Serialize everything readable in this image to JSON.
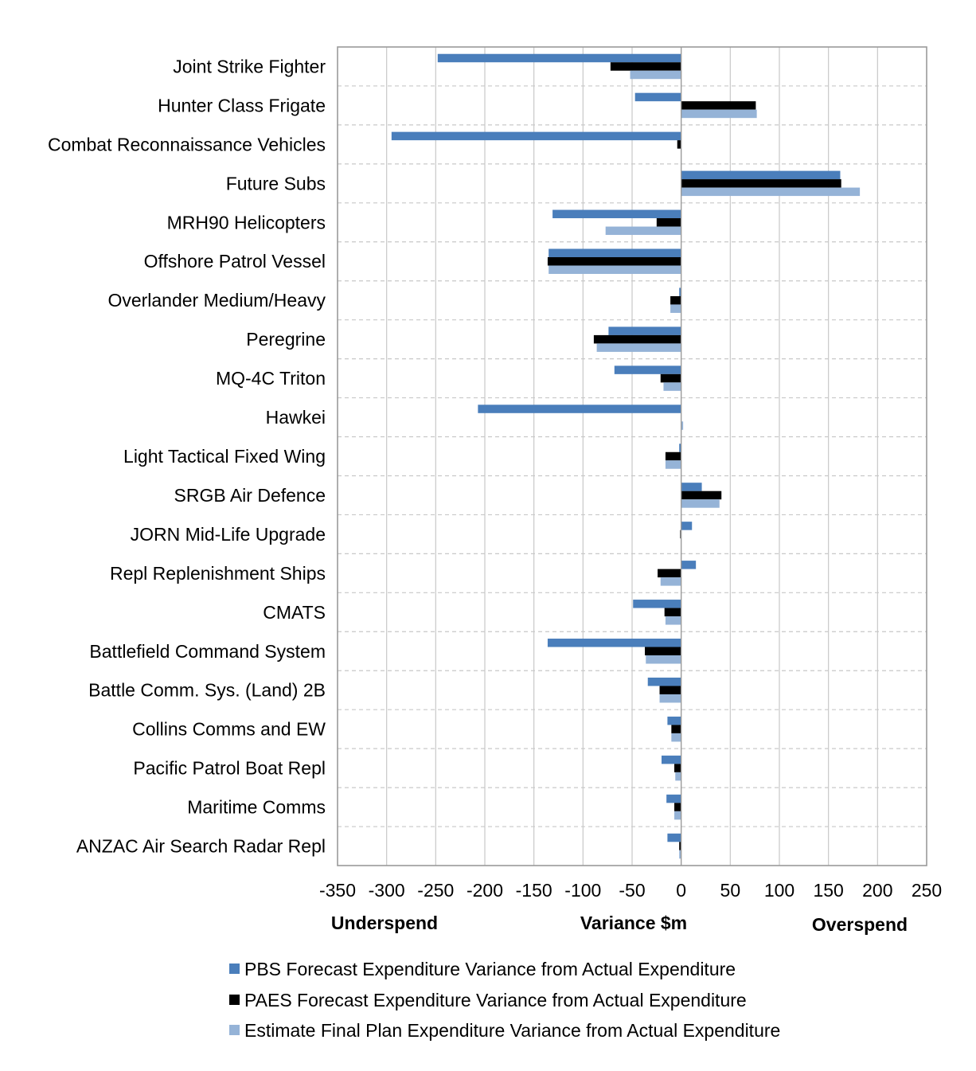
{
  "chart_data": {
    "type": "bar",
    "orientation": "horizontal",
    "categories": [
      "Joint Strike Fighter",
      "Hunter Class Frigate",
      "Combat Reconnaissance Vehicles",
      "Future Subs",
      "MRH90 Helicopters",
      "Offshore Patrol Vessel",
      "Overlander Medium/Heavy",
      "Peregrine",
      "MQ-4C Triton",
      "Hawkei",
      "Light Tactical Fixed Wing",
      "SRGB Air Defence",
      "JORN Mid-Life Upgrade",
      "Repl Replenishment Ships",
      "CMATS",
      "Battlefield Command System",
      "Battle Comm. Sys. (Land) 2B",
      "Collins Comms and EW",
      "Pacific Patrol Boat Repl",
      "Maritime Comms",
      "ANZAC Air Search Radar Repl"
    ],
    "series": [
      {
        "name": "PBS Forecast Expenditure Variance from Actual Expenditure",
        "color": "#4a7ebb",
        "values": [
          -248,
          -47,
          -295,
          162,
          -131,
          -135,
          -2,
          -74,
          -68,
          -207,
          -2,
          21,
          11,
          15,
          -49,
          -136,
          -34,
          -14,
          -20,
          -15,
          -14
        ]
      },
      {
        "name": "PAES Forecast Expenditure Variance from Actual Expenditure",
        "color": "#000000",
        "values": [
          -72,
          76,
          -4,
          163,
          -25,
          -136,
          -11,
          -89,
          -21,
          0,
          -16,
          41,
          -1,
          -24,
          -17,
          -37,
          -22,
          -10,
          -7,
          -7,
          -2
        ]
      },
      {
        "name": "Estimate Final Plan Expenditure Variance from Actual Expenditure",
        "color": "#95b3d7",
        "values": [
          -52,
          77,
          0,
          182,
          -77,
          -135,
          -11,
          -86,
          -18,
          2,
          -16,
          39,
          0,
          -21,
          -16,
          -36,
          -22,
          -10,
          -6,
          -7,
          -2
        ]
      }
    ],
    "xlim": [
      -350,
      250
    ],
    "xticks": [
      -350,
      -300,
      -250,
      -200,
      -150,
      -100,
      -50,
      0,
      50,
      100,
      150,
      200,
      250
    ],
    "xticks_labels": [
      "-350",
      "-300",
      "-250",
      "-200",
      "-150",
      "-100",
      "-50",
      "0",
      "50",
      "100",
      "150",
      "200",
      "250"
    ],
    "xlabel": "Variance $m",
    "left_note": "Underspend",
    "right_note": "Overspend",
    "grid": true,
    "legend_position": "bottom"
  }
}
